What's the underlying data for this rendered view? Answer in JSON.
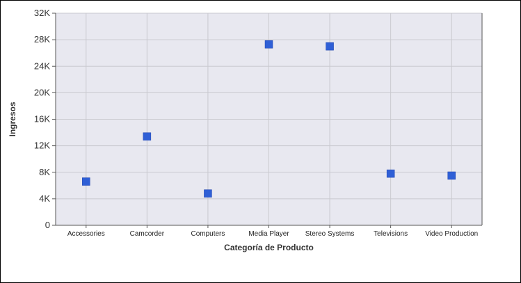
{
  "chart_data": {
    "type": "scatter",
    "title": "",
    "xlabel": "Categoría de Producto",
    "ylabel": "Ingresos",
    "categories": [
      "Accessories",
      "Camcorder",
      "Computers",
      "Media Player",
      "Stereo Systems",
      "Televisions",
      "Video Production"
    ],
    "series": [
      {
        "values": [
          6600,
          13400,
          4800,
          27300,
          27000,
          7800,
          7500
        ]
      }
    ],
    "ylim": [
      0,
      32000
    ],
    "yticks": [
      0,
      4000,
      8000,
      12000,
      16000,
      20000,
      24000,
      28000,
      32000
    ],
    "ytick_labels": [
      "0",
      "4K",
      "8K",
      "12K",
      "16K",
      "20K",
      "24K",
      "28K",
      "32K"
    ],
    "grid": true,
    "legend": "none",
    "colors": {
      "marker": "#2f5fd6",
      "plot_background": "#e8e8f0",
      "grid": "#c9c9cf"
    }
  }
}
